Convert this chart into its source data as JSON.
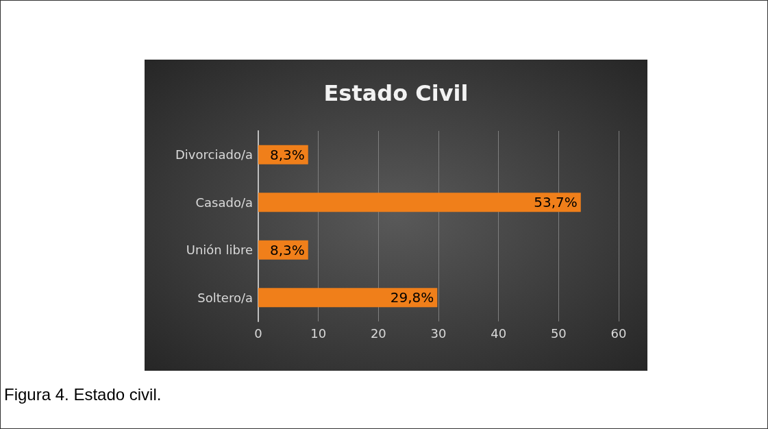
{
  "chart_data": {
    "type": "bar",
    "orientation": "horizontal",
    "title": "Estado Civil",
    "categories": [
      "Divorciado/a",
      "Casado/a",
      "Unión libre",
      "Soltero/a"
    ],
    "values": [
      8.3,
      53.7,
      8.3,
      29.8
    ],
    "value_labels": [
      "8,3%",
      "53,7%",
      "8,3%",
      "29,8%"
    ],
    "color": "#f07f1a",
    "xlim": [
      0,
      60
    ],
    "xticks": [
      0,
      10,
      20,
      30,
      40,
      50,
      60
    ],
    "grid": "x",
    "annotations": [
      "Figura 4. Estado civil."
    ]
  }
}
